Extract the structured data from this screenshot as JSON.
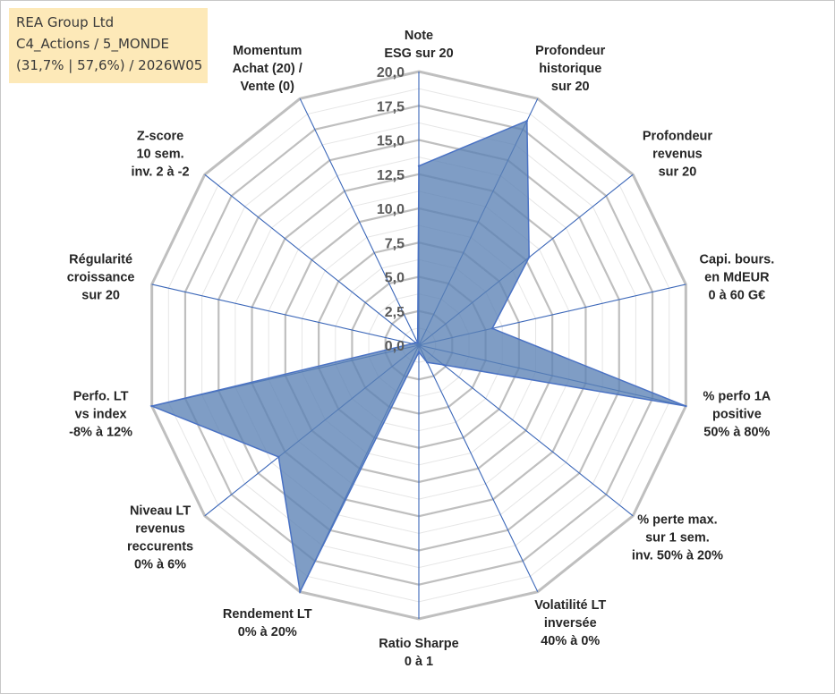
{
  "header": {
    "line1": "REA Group Ltd",
    "line2": "C4_Actions / 5_MONDE",
    "line3": "(31,7% | 57,6%) / 2026W05"
  },
  "colors": {
    "fill": "#5b82b5",
    "stroke": "#4a72c4",
    "grid": "#bfbfbf",
    "spoke": "#3a66b8"
  },
  "chart_data": {
    "type": "radar",
    "rmin": 0,
    "rmax": 20,
    "ticks": [
      "0,0",
      "2,5",
      "5,0",
      "7,5",
      "10,0",
      "12,5",
      "15,0",
      "17,5",
      "20,0"
    ],
    "tick_values": [
      0,
      2.5,
      5,
      7.5,
      10,
      12.5,
      15,
      17.5,
      20
    ],
    "axes": [
      {
        "lines": [
          "Note",
          "ESG sur 20"
        ],
        "value": 13.1
      },
      {
        "lines": [
          "Profondeur",
          "historique",
          "sur 20"
        ],
        "value": 18.2
      },
      {
        "lines": [
          "Profondeur",
          "revenus",
          "sur 20"
        ],
        "value": 10.3
      },
      {
        "lines": [
          "Capi. bours.",
          "en MdEUR",
          "0 à 60 G€"
        ],
        "value": 5.5
      },
      {
        "lines": [
          "% perfo 1A",
          "positive",
          "50% à 80%"
        ],
        "value": 20.0
      },
      {
        "lines": [
          "% perte max.",
          "sur 1 sem.",
          "inv. 50% à 20%"
        ],
        "value": 2.3
      },
      {
        "lines": [
          "Volatilité LT",
          "inversée",
          "40% à 0%"
        ],
        "value": 1.4
      },
      {
        "lines": [
          "Ratio Sharpe",
          "0 à 1"
        ],
        "value": 0.5
      },
      {
        "lines": [
          "Rendement LT",
          "0% à 20%"
        ],
        "value": 20.0
      },
      {
        "lines": [
          "Niveau LT",
          "revenus",
          "reccurents",
          "0% à 6%"
        ],
        "value": 13.1
      },
      {
        "lines": [
          "Perfo. LT",
          "vs index",
          "-8% à 12%"
        ],
        "value": 20.0
      },
      {
        "lines": [
          "Régularité",
          "croissance",
          "sur 20"
        ],
        "value": 0.5
      },
      {
        "lines": [
          "Z-score",
          "10 sem.",
          "inv. 2 à -2"
        ],
        "value": 0.3
      },
      {
        "lines": [
          "Momentum",
          "Achat (20) /",
          "Vente (0)"
        ],
        "value": 0.2
      }
    ]
  }
}
